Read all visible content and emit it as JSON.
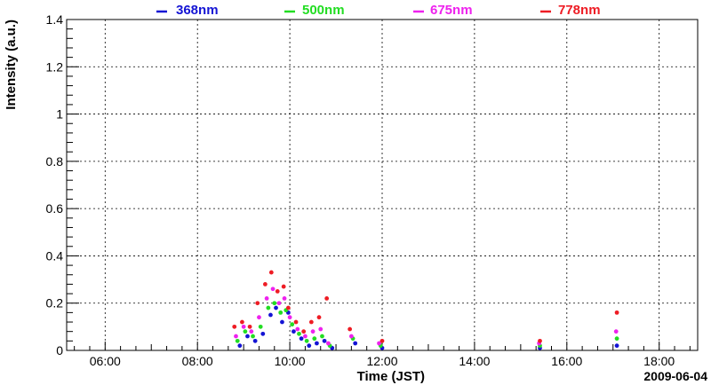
{
  "chart_data": {
    "type": "scatter",
    "xlabel": "Time (JST)",
    "ylabel": "Intensity (a.u.)",
    "date_label": "2009-06-04",
    "xlim": [
      "05:10",
      "18:50"
    ],
    "ylim": [
      0,
      1.4
    ],
    "x_ticks": [
      "06:00",
      "08:00",
      "10:00",
      "12:00",
      "14:00",
      "16:00",
      "18:00"
    ],
    "y_ticks": [
      "0",
      "0.2",
      "0.4",
      "0.6",
      "0.8",
      "1",
      "1.2",
      "1.4"
    ],
    "grid": true,
    "legend_position": "top",
    "series": [
      {
        "name": "368nm",
        "color": "#1414d4",
        "x": [
          "08:55",
          "09:05",
          "09:15",
          "09:25",
          "09:35",
          "09:42",
          "09:50",
          "09:58",
          "10:05",
          "10:15",
          "10:25",
          "10:35",
          "10:45",
          "10:55",
          "11:25",
          "12:00",
          "15:25",
          "17:05"
        ],
        "y": [
          0.02,
          0.06,
          0.04,
          0.07,
          0.15,
          0.18,
          0.12,
          0.16,
          0.08,
          0.05,
          0.02,
          0.03,
          0.04,
          0.01,
          0.03,
          0.01,
          0.01,
          0.02
        ]
      },
      {
        "name": "500nm",
        "color": "#22dd22",
        "x": [
          "08:52",
          "09:02",
          "09:12",
          "09:22",
          "09:32",
          "09:40",
          "09:48",
          "09:55",
          "10:03",
          "10:12",
          "10:22",
          "10:32",
          "10:42",
          "10:52",
          "11:22",
          "11:58",
          "15:25",
          "17:05"
        ],
        "y": [
          0.04,
          0.08,
          0.06,
          0.1,
          0.18,
          0.2,
          0.16,
          0.17,
          0.11,
          0.07,
          0.04,
          0.05,
          0.06,
          0.02,
          0.05,
          0.02,
          0.02,
          0.05
        ]
      },
      {
        "name": "675nm",
        "color": "#ee22ee",
        "x": [
          "08:50",
          "09:00",
          "09:10",
          "09:20",
          "09:30",
          "09:38",
          "09:46",
          "09:53",
          "10:00",
          "10:10",
          "10:20",
          "10:30",
          "10:40",
          "10:50",
          "11:20",
          "11:56",
          "15:24",
          "17:04"
        ],
        "y": [
          0.06,
          0.1,
          0.08,
          0.14,
          0.22,
          0.26,
          0.2,
          0.22,
          0.14,
          0.09,
          0.06,
          0.08,
          0.09,
          0.03,
          0.06,
          0.03,
          0.03,
          0.08
        ]
      },
      {
        "name": "778nm",
        "color": "#ee1c24",
        "x": [
          "08:48",
          "08:58",
          "09:08",
          "09:18",
          "09:28",
          "09:36",
          "09:44",
          "09:52",
          "09:58",
          "10:08",
          "10:18",
          "10:28",
          "10:38",
          "10:48",
          "11:18",
          "12:00",
          "15:25",
          "17:05"
        ],
        "y": [
          0.1,
          0.12,
          0.1,
          0.2,
          0.28,
          0.33,
          0.25,
          0.27,
          0.18,
          0.12,
          0.08,
          0.12,
          0.14,
          0.22,
          0.09,
          0.04,
          0.04,
          0.16
        ]
      }
    ]
  }
}
